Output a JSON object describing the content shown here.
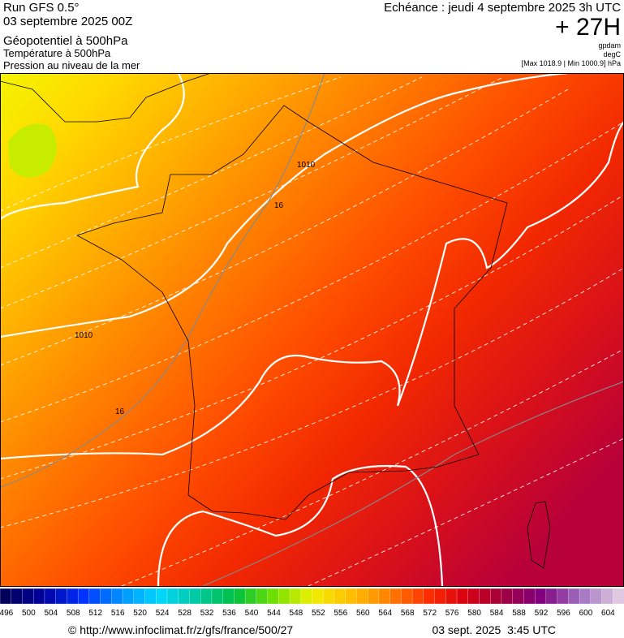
{
  "header": {
    "run": "Run GFS 0.5°",
    "date": "03 septembre 2025 00Z",
    "fields": [
      "Géopotentiel à 500hPa",
      "Température à 500hPa",
      "Pression au niveau de la mer"
    ],
    "valid": "Echéance : jeudi 4 septembre 2025 3h UTC",
    "lead": "+ 27H",
    "units": [
      "gpdam",
      "degC",
      "[Max 1018.9 | Min 1000.9] hPa"
    ]
  },
  "map": {
    "contour_labels": [
      "1010",
      "1010",
      "16",
      "16"
    ]
  },
  "colorbar": {
    "ticks": [
      496,
      500,
      504,
      508,
      512,
      516,
      520,
      524,
      528,
      532,
      536,
      540,
      544,
      548,
      552,
      556,
      560,
      564,
      568,
      572,
      576,
      580,
      584,
      588,
      592,
      596,
      600,
      604
    ]
  },
  "footer": {
    "url": "© http://www.infoclimat.fr/z/gfs/france/500/27",
    "timestamp": "03 sept. 2025  3:45 UTC"
  }
}
